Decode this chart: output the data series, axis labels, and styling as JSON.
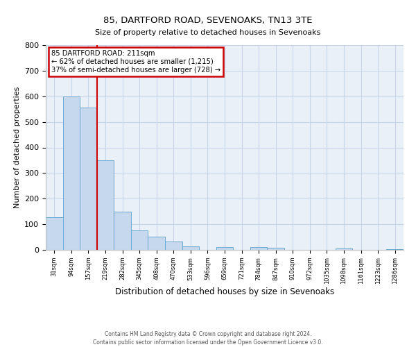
{
  "title1": "85, DARTFORD ROAD, SEVENOAKS, TN13 3TE",
  "title2": "Size of property relative to detached houses in Sevenoaks",
  "xlabel": "Distribution of detached houses by size in Sevenoaks",
  "ylabel": "Number of detached properties",
  "bar_labels": [
    "31sqm",
    "94sqm",
    "157sqm",
    "219sqm",
    "282sqm",
    "345sqm",
    "408sqm",
    "470sqm",
    "533sqm",
    "596sqm",
    "659sqm",
    "721sqm",
    "784sqm",
    "847sqm",
    "910sqm",
    "972sqm",
    "1035sqm",
    "1098sqm",
    "1161sqm",
    "1223sqm",
    "1286sqm"
  ],
  "bar_values": [
    128,
    600,
    555,
    350,
    150,
    75,
    52,
    33,
    13,
    0,
    10,
    0,
    10,
    8,
    0,
    0,
    0,
    5,
    0,
    0,
    4
  ],
  "bar_color": "#c5d8ed",
  "bar_edge_color": "#6aaad4",
  "red_line_x": 2.5,
  "annotation_line1": "85 DARTFORD ROAD: 211sqm",
  "annotation_line2": "← 62% of detached houses are smaller (1,215)",
  "annotation_line3": "37% of semi-detached houses are larger (728) →",
  "annotation_box_color": "#ffffff",
  "annotation_box_edge_color": "#cc0000",
  "red_line_color": "#cc0000",
  "ylim": [
    0,
    800
  ],
  "yticks": [
    0,
    100,
    200,
    300,
    400,
    500,
    600,
    700,
    800
  ],
  "footer_line1": "Contains HM Land Registry data © Crown copyright and database right 2024.",
  "footer_line2": "Contains public sector information licensed under the Open Government Licence v3.0.",
  "bg_color": "#ffffff",
  "ax_bg_color": "#eaf0f8",
  "grid_color": "#c8d4e8"
}
